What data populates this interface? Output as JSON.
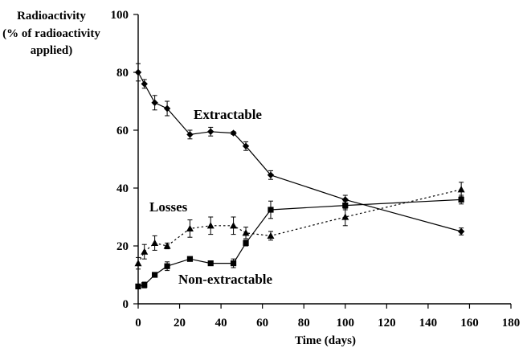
{
  "chart_data": {
    "type": "line",
    "ylabel_lines": [
      "Radioactivity",
      "(% of radioactivity",
      "applied)"
    ],
    "xlabel": "Time (days)",
    "xlim": [
      0,
      180
    ],
    "ylim": [
      0,
      100
    ],
    "xticks": [
      0,
      20,
      40,
      60,
      80,
      100,
      120,
      140,
      160,
      180
    ],
    "yticks": [
      0,
      20,
      40,
      60,
      80,
      100
    ],
    "grid": false,
    "series": [
      {
        "name": "Extractable",
        "marker": "diamond",
        "line": "solid",
        "x": [
          0,
          3,
          8,
          14,
          25,
          35,
          46,
          52,
          64,
          100,
          156
        ],
        "y": [
          80,
          76,
          69.5,
          67.5,
          58.5,
          59.5,
          59,
          54.5,
          44.5,
          36,
          25
        ],
        "err": [
          3,
          1.5,
          2.5,
          2.5,
          1.5,
          1.5,
          0.5,
          1.5,
          1.5,
          1.5,
          1.2
        ]
      },
      {
        "name": "Losses",
        "marker": "triangle",
        "line": "dotted",
        "x": [
          0,
          3,
          8,
          14,
          25,
          35,
          46,
          52,
          64,
          100,
          156
        ],
        "y": [
          14,
          18,
          21,
          20,
          26,
          27,
          27,
          24.5,
          23.5,
          30,
          39.5
        ],
        "err": [
          2,
          2.5,
          2.5,
          1,
          3,
          3,
          3,
          2,
          1.5,
          3,
          2.5
        ]
      },
      {
        "name": "Non-extractable",
        "marker": "square",
        "line": "solid",
        "x": [
          0,
          3,
          8,
          14,
          25,
          35,
          46,
          52,
          64,
          100,
          156
        ],
        "y": [
          6,
          6.5,
          10,
          13,
          15.5,
          14,
          14,
          21,
          32.5,
          34,
          36
        ],
        "err": [
          0.5,
          1,
          0.5,
          1.5,
          0.5,
          0.5,
          1.5,
          1,
          3,
          1.5,
          1.5
        ]
      }
    ]
  }
}
